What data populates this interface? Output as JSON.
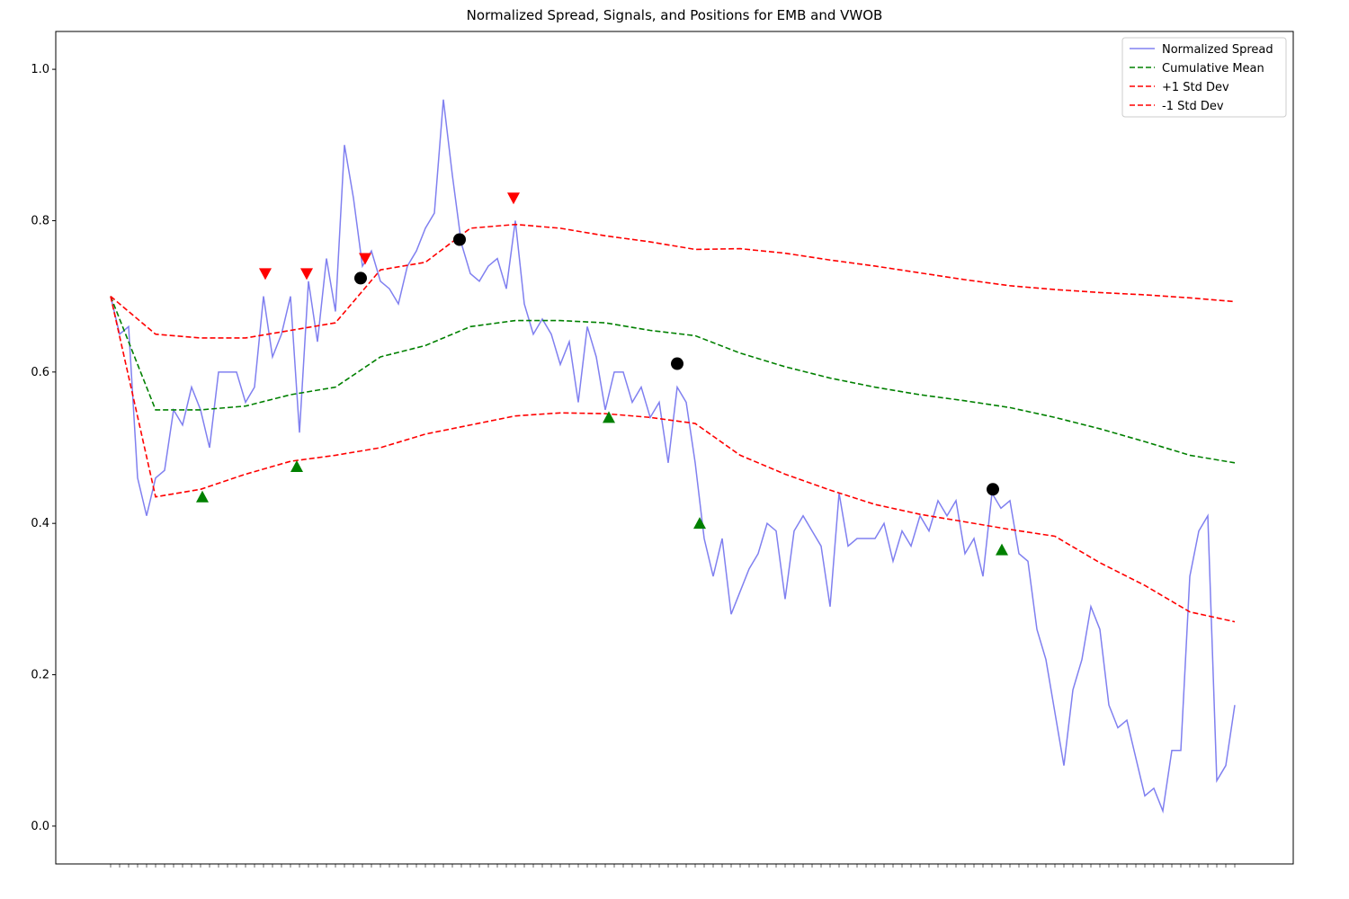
{
  "chart_data": {
    "type": "line",
    "title": "Normalized Spread, Signals, and Positions for EMB and VWOB",
    "xlim": [
      -6.1,
      131.5
    ],
    "ylim": [
      -0.05,
      1.05
    ],
    "yticks": [
      {
        "value": 0,
        "label": "0.0"
      },
      0.2,
      0.4,
      0.6,
      0.8,
      {
        "value": 1,
        "label": "1.0"
      }
    ],
    "legend": "upper right",
    "series": [
      {
        "name": "Normalized Spread",
        "color": "#8080f0",
        "linestyle": "solid",
        "x": [
          0,
          1,
          2,
          3,
          4,
          5,
          6,
          7,
          8,
          9,
          10,
          11,
          12,
          13,
          14,
          15,
          16,
          17,
          18,
          19,
          20,
          21,
          22,
          23,
          24,
          25,
          26,
          27,
          28,
          29,
          30,
          31,
          32,
          33,
          34,
          35,
          36,
          37,
          38,
          39,
          40,
          41,
          42,
          43,
          44,
          45,
          46,
          47,
          48,
          49,
          50,
          51,
          52,
          53,
          54,
          55,
          56,
          57,
          58,
          59,
          60,
          61,
          62,
          63,
          64,
          65,
          66,
          67,
          68,
          69,
          70,
          71,
          72,
          73,
          74,
          75,
          76,
          77,
          78,
          79,
          80,
          81,
          82,
          83,
          84,
          85,
          86,
          87,
          88,
          89,
          90,
          91,
          92,
          93,
          94,
          95,
          96,
          97,
          98,
          99,
          100,
          101,
          102,
          103,
          104,
          105,
          106,
          107,
          108,
          109,
          110,
          111,
          112,
          113,
          114,
          115,
          116,
          117,
          118,
          119,
          120,
          121,
          122,
          123,
          124,
          125
        ],
        "values": [
          0.7,
          0.65,
          0.66,
          0.46,
          0.41,
          0.46,
          0.47,
          0.55,
          0.53,
          0.58,
          0.55,
          0.5,
          0.6,
          0.6,
          0.6,
          0.56,
          0.58,
          0.7,
          0.62,
          0.65,
          0.7,
          0.52,
          0.72,
          0.64,
          0.75,
          0.68,
          0.9,
          0.83,
          0.74,
          0.76,
          0.72,
          0.71,
          0.69,
          0.74,
          0.76,
          0.79,
          0.81,
          0.96,
          0.86,
          0.77,
          0.73,
          0.72,
          0.74,
          0.75,
          0.71,
          0.8,
          0.69,
          0.65,
          0.67,
          0.65,
          0.61,
          0.64,
          0.56,
          0.66,
          0.62,
          0.55,
          0.6,
          0.6,
          0.56,
          0.58,
          0.54,
          0.56,
          0.48,
          0.58,
          0.56,
          0.48,
          0.38,
          0.33,
          0.38,
          0.28,
          0.31,
          0.34,
          0.36,
          0.4,
          0.39,
          0.3,
          0.39,
          0.41,
          0.39,
          0.37,
          0.29,
          0.44,
          0.37,
          0.38,
          0.38,
          0.38,
          0.4,
          0.35,
          0.39,
          0.37,
          0.41,
          0.39,
          0.43,
          0.41,
          0.43,
          0.36,
          0.38,
          0.33,
          0.44,
          0.42,
          0.43,
          0.36,
          0.35,
          0.26,
          0.22,
          0.15,
          0.08,
          0.18,
          0.22,
          0.29,
          0.26,
          0.16,
          0.13,
          0.14,
          0.09,
          0.04,
          0.05,
          0.02,
          0.1,
          0.1,
          0.33,
          0.39,
          0.41,
          0.06,
          0.08,
          0.16
        ]
      },
      {
        "name": "Cumulative Mean",
        "color": "#008000",
        "linestyle": "dashed",
        "x": [
          0,
          5,
          10,
          15,
          20,
          25,
          30,
          35,
          40,
          45,
          50,
          55,
          60,
          65,
          70,
          75,
          80,
          85,
          90,
          95,
          100,
          105,
          110,
          115,
          120,
          125
        ],
        "values": [
          0.7,
          0.55,
          0.55,
          0.555,
          0.57,
          0.58,
          0.62,
          0.635,
          0.66,
          0.668,
          0.668,
          0.665,
          0.655,
          0.648,
          0.625,
          0.607,
          0.592,
          0.58,
          0.57,
          0.562,
          0.553,
          0.54,
          0.525,
          0.508,
          0.49,
          0.48
        ]
      },
      {
        "name": "+1 Std Dev",
        "color": "#ff0000",
        "linestyle": "dashed",
        "x": [
          0,
          5,
          10,
          15,
          20,
          25,
          30,
          35,
          40,
          45,
          50,
          55,
          60,
          65,
          70,
          75,
          80,
          85,
          90,
          95,
          100,
          105,
          110,
          115,
          120,
          125
        ],
        "values": [
          0.7,
          0.65,
          0.645,
          0.645,
          0.655,
          0.665,
          0.735,
          0.745,
          0.79,
          0.795,
          0.79,
          0.78,
          0.772,
          0.762,
          0.763,
          0.757,
          0.748,
          0.74,
          0.731,
          0.722,
          0.714,
          0.709,
          0.705,
          0.702,
          0.698,
          0.693
        ]
      },
      {
        "name": "-1 Std Dev",
        "color": "#ff0000",
        "linestyle": "dashed",
        "x": [
          0,
          5,
          10,
          15,
          20,
          25,
          30,
          35,
          40,
          45,
          50,
          55,
          60,
          65,
          70,
          75,
          80,
          85,
          90,
          95,
          100,
          105,
          110,
          115,
          120,
          125
        ],
        "values": [
          0.7,
          0.435,
          0.445,
          0.465,
          0.482,
          0.49,
          0.5,
          0.518,
          0.53,
          0.542,
          0.546,
          0.545,
          0.54,
          0.532,
          0.49,
          0.465,
          0.444,
          0.425,
          0.412,
          0.402,
          0.392,
          0.383,
          0.348,
          0.318,
          0.283,
          0.27
        ]
      }
    ],
    "markers": [
      {
        "marker": "triangle-down",
        "color": "#ff0000",
        "x": [
          17.2,
          21.8,
          28.3,
          44.8
        ],
        "values": [
          0.73,
          0.73,
          0.75,
          0.83
        ]
      },
      {
        "marker": "triangle-up",
        "color": "#008000",
        "x": [
          10.2,
          20.7,
          55.4,
          65.5,
          99.1
        ],
        "values": [
          0.435,
          0.475,
          0.54,
          0.4,
          0.365
        ]
      },
      {
        "marker": "circle",
        "color": "#000000",
        "x": [
          27.8,
          38.8,
          63,
          98.1
        ],
        "values": [
          0.724,
          0.775,
          0.611,
          0.445
        ]
      }
    ]
  }
}
